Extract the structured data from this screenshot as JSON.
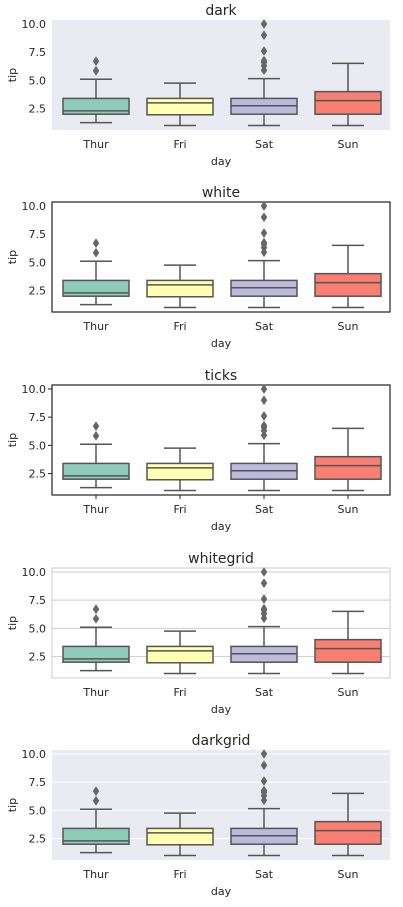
{
  "chart_data": [
    {
      "type": "box",
      "title": "dark",
      "style": "dark",
      "xlabel": "day",
      "ylabel": "tip",
      "ylim": [
        0.6,
        10.35
      ],
      "yticks": [
        "2.5",
        "5.0",
        "7.5",
        "10.0"
      ],
      "categories": [
        "Thur",
        "Fri",
        "Sat",
        "Sun"
      ],
      "boxes": [
        {
          "whisker_low": 1.25,
          "q1": 2.0,
          "median": 2.3,
          "q3": 3.4,
          "whisker_high": 5.1,
          "outliers": [
            5.85,
            6.7
          ]
        },
        {
          "whisker_low": 1.0,
          "q1": 1.95,
          "median": 3.0,
          "q3": 3.4,
          "whisker_high": 4.75,
          "outliers": []
        },
        {
          "whisker_low": 1.0,
          "q1": 2.0,
          "median": 2.75,
          "q3": 3.4,
          "whisker_high": 5.15,
          "outliers": [
            5.9,
            6.3,
            6.6,
            6.75,
            7.6,
            9.0,
            10.0
          ]
        },
        {
          "whisker_low": 1.0,
          "q1": 2.0,
          "median": 3.2,
          "q3": 4.0,
          "whisker_high": 6.5,
          "outliers": []
        }
      ],
      "grid": false
    },
    {
      "type": "box",
      "title": "white",
      "style": "white",
      "xlabel": "day",
      "ylabel": "tip",
      "ylim": [
        0.6,
        10.35
      ],
      "yticks": [
        "2.5",
        "5.0",
        "7.5",
        "10.0"
      ],
      "categories": [
        "Thur",
        "Fri",
        "Sat",
        "Sun"
      ],
      "boxes": [
        {
          "whisker_low": 1.25,
          "q1": 2.0,
          "median": 2.3,
          "q3": 3.4,
          "whisker_high": 5.1,
          "outliers": [
            5.85,
            6.7
          ]
        },
        {
          "whisker_low": 1.0,
          "q1": 1.95,
          "median": 3.0,
          "q3": 3.4,
          "whisker_high": 4.75,
          "outliers": []
        },
        {
          "whisker_low": 1.0,
          "q1": 2.0,
          "median": 2.75,
          "q3": 3.4,
          "whisker_high": 5.15,
          "outliers": [
            5.9,
            6.3,
            6.6,
            6.75,
            7.6,
            9.0,
            10.0
          ]
        },
        {
          "whisker_low": 1.0,
          "q1": 2.0,
          "median": 3.2,
          "q3": 4.0,
          "whisker_high": 6.5,
          "outliers": []
        }
      ],
      "grid": false
    },
    {
      "type": "box",
      "title": "ticks",
      "style": "ticks",
      "xlabel": "day",
      "ylabel": "tip",
      "ylim": [
        0.6,
        10.35
      ],
      "yticks": [
        "2.5",
        "5.0",
        "7.5",
        "10.0"
      ],
      "categories": [
        "Thur",
        "Fri",
        "Sat",
        "Sun"
      ],
      "boxes": [
        {
          "whisker_low": 1.25,
          "q1": 2.0,
          "median": 2.3,
          "q3": 3.4,
          "whisker_high": 5.1,
          "outliers": [
            5.85,
            6.7
          ]
        },
        {
          "whisker_low": 1.0,
          "q1": 1.95,
          "median": 3.0,
          "q3": 3.4,
          "whisker_high": 4.75,
          "outliers": []
        },
        {
          "whisker_low": 1.0,
          "q1": 2.0,
          "median": 2.75,
          "q3": 3.4,
          "whisker_high": 5.15,
          "outliers": [
            5.9,
            6.3,
            6.6,
            6.75,
            7.6,
            9.0,
            10.0
          ]
        },
        {
          "whisker_low": 1.0,
          "q1": 2.0,
          "median": 3.2,
          "q3": 4.0,
          "whisker_high": 6.5,
          "outliers": []
        }
      ],
      "grid": false
    },
    {
      "type": "box",
      "title": "whitegrid",
      "style": "whitegrid",
      "xlabel": "day",
      "ylabel": "tip",
      "ylim": [
        0.6,
        10.35
      ],
      "yticks": [
        "2.5",
        "5.0",
        "7.5",
        "10.0"
      ],
      "categories": [
        "Thur",
        "Fri",
        "Sat",
        "Sun"
      ],
      "boxes": [
        {
          "whisker_low": 1.25,
          "q1": 2.0,
          "median": 2.3,
          "q3": 3.4,
          "whisker_high": 5.1,
          "outliers": [
            5.85,
            6.7
          ]
        },
        {
          "whisker_low": 1.0,
          "q1": 1.95,
          "median": 3.0,
          "q3": 3.4,
          "whisker_high": 4.75,
          "outliers": []
        },
        {
          "whisker_low": 1.0,
          "q1": 2.0,
          "median": 2.75,
          "q3": 3.4,
          "whisker_high": 5.15,
          "outliers": [
            5.9,
            6.3,
            6.6,
            6.75,
            7.6,
            9.0,
            10.0
          ]
        },
        {
          "whisker_low": 1.0,
          "q1": 2.0,
          "median": 3.2,
          "q3": 4.0,
          "whisker_high": 6.5,
          "outliers": []
        }
      ],
      "grid": true
    },
    {
      "type": "box",
      "title": "darkgrid",
      "style": "darkgrid",
      "xlabel": "day",
      "ylabel": "tip",
      "ylim": [
        0.6,
        10.35
      ],
      "yticks": [
        "2.5",
        "5.0",
        "7.5",
        "10.0"
      ],
      "categories": [
        "Thur",
        "Fri",
        "Sat",
        "Sun"
      ],
      "boxes": [
        {
          "whisker_low": 1.25,
          "q1": 2.0,
          "median": 2.3,
          "q3": 3.4,
          "whisker_high": 5.1,
          "outliers": [
            5.85,
            6.7
          ]
        },
        {
          "whisker_low": 1.0,
          "q1": 1.95,
          "median": 3.0,
          "q3": 3.4,
          "whisker_high": 4.75,
          "outliers": []
        },
        {
          "whisker_low": 1.0,
          "q1": 2.0,
          "median": 2.75,
          "q3": 3.4,
          "whisker_high": 5.15,
          "outliers": [
            5.9,
            6.3,
            6.6,
            6.75,
            7.6,
            9.0,
            10.0
          ]
        },
        {
          "whisker_low": 1.0,
          "q1": 2.0,
          "median": 3.2,
          "q3": 4.0,
          "whisker_high": 6.5,
          "outliers": []
        }
      ],
      "grid": true
    }
  ],
  "colors": {
    "box_fills": [
      "#8ecbb9",
      "#feffb3",
      "#bebadb",
      "#f87f72"
    ],
    "box_line": "#555555",
    "dark_bg": "#eaeaf2",
    "grid_white": "#ffffff",
    "grid_light": "#cccccc",
    "axis_frame_dark": "#222222",
    "axis_frame_light": "#cccccc",
    "text": "#262626"
  }
}
